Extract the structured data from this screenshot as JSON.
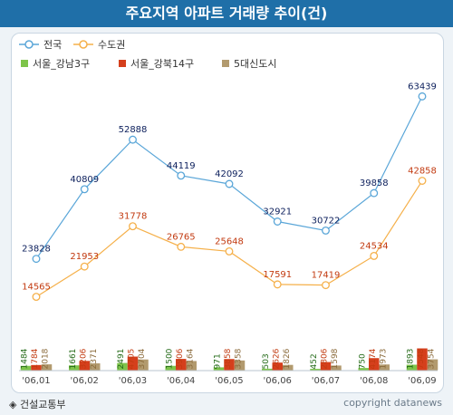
{
  "title": "주요지역 아파트 거래량 추이(건)",
  "source": "◈ 건설교통부",
  "copyright": "copyright datanews",
  "colors": {
    "header": "#1f6fa8",
    "national": "#5aa6d8",
    "metro": "#f5b04a",
    "gangnam": "#7ec44a",
    "gangbuk": "#d53f1c",
    "new_town": "#b29a6e",
    "label_national": "#0c1f5c",
    "label_metro": "#c23a10",
    "label_gangnam": "#236a17",
    "label_gangbuk": "#c23a10",
    "label_new_town": "#8a6a3a"
  },
  "chart_data": {
    "type": "line+bar",
    "categories": [
      "'06,01",
      "'06,02",
      "'06,03",
      "'06,04",
      "'06,05",
      "'06,06",
      "'06,07",
      "'06,08",
      "'06,09"
    ],
    "line_series": [
      {
        "name": "전국",
        "values": [
          23828,
          40809,
          52888,
          44119,
          42092,
          32921,
          30722,
          39858,
          63439
        ]
      },
      {
        "name": "수도권",
        "values": [
          14565,
          21953,
          31778,
          26765,
          25648,
          17591,
          17419,
          24534,
          42858
        ]
      }
    ],
    "bar_series": [
      {
        "name": "서울_강남3구",
        "values": [
          1484,
          1661,
          2491,
          1500,
          971,
          503,
          452,
          750,
          1893
        ]
      },
      {
        "name": "서울_강북14구",
        "values": [
          1784,
          3206,
          4705,
          3906,
          3858,
          2626,
          2806,
          4174,
          7548
        ]
      },
      {
        "name": "5대신도시",
        "values": [
          2018,
          2371,
          3704,
          3164,
          3358,
          1826,
          1598,
          1973,
          3754
        ]
      }
    ],
    "legend_position": "top-left",
    "grid": false
  }
}
